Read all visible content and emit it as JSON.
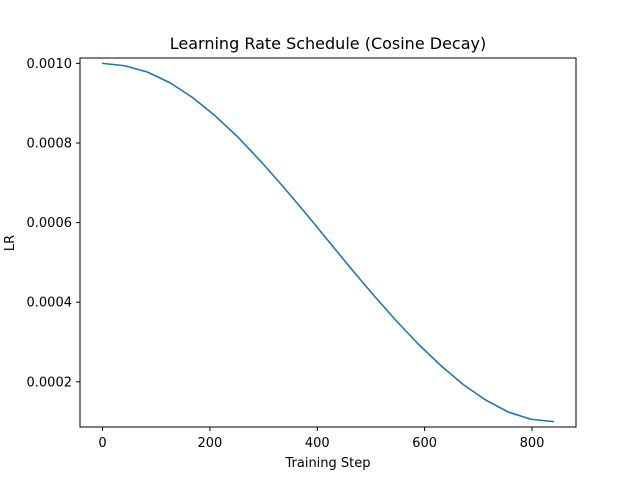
{
  "chart_data": {
    "type": "line",
    "title": "Learning Rate Schedule (Cosine Decay)",
    "xlabel": "Training Step",
    "ylabel": "LR",
    "xlim": [
      -42,
      882
    ],
    "ylim": [
      8.65e-05,
      0.0010135
    ],
    "xticks": [
      0,
      200,
      400,
      600,
      800
    ],
    "xtick_labels": [
      "0",
      "200",
      "400",
      "600",
      "800"
    ],
    "yticks": [
      0.0002,
      0.0004,
      0.0006,
      0.0008,
      0.001
    ],
    "ytick_labels": [
      "0.0002",
      "0.0004",
      "0.0006",
      "0.0008",
      "0.0010"
    ],
    "grid": false,
    "legend": "none",
    "series": [
      {
        "color": "#1f77b4",
        "x": [
          0,
          42,
          84,
          126,
          168,
          210,
          252,
          294,
          336,
          378,
          420,
          462,
          504,
          546,
          588,
          630,
          672,
          714,
          756,
          798,
          840
        ],
        "y": [
          0.001,
          0.000994,
          0.000978,
          0.000951,
          0.000914,
          0.000868,
          0.000815,
          0.000755,
          0.000691,
          0.000624,
          0.000555,
          0.000486,
          0.000419,
          0.000355,
          0.000295,
          0.000241,
          0.000193,
          0.000154,
          0.000124,
          0.000106,
          0.0001
        ]
      }
    ]
  }
}
